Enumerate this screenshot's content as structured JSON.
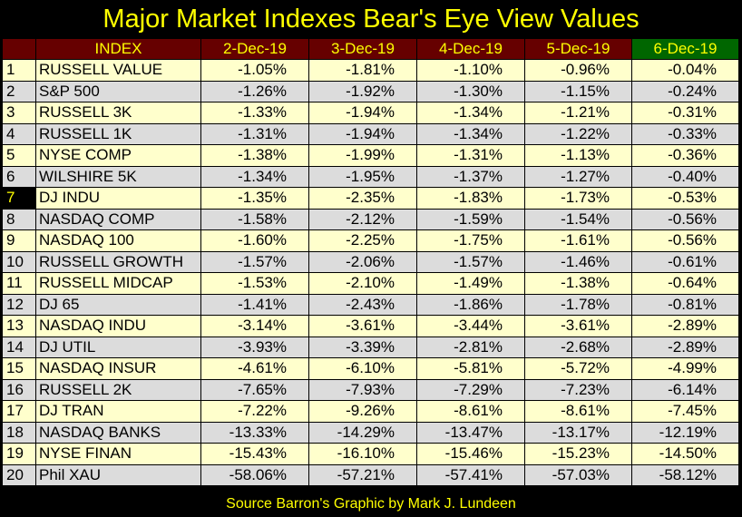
{
  "chart_data": {
    "type": "table",
    "title": "Major Market Indexes Bear's Eye View Values",
    "columns": [
      "INDEX",
      "2-Dec-19",
      "3-Dec-19",
      "4-Dec-19",
      "5-Dec-19",
      "6-Dec-19"
    ],
    "rows": [
      {
        "rank": "1",
        "index": "RUSSELL VALUE",
        "values": [
          "-1.05%",
          "-1.81%",
          "-1.10%",
          "-0.96%",
          "-0.04%"
        ]
      },
      {
        "rank": "2",
        "index": "S&P 500",
        "values": [
          "-1.26%",
          "-1.92%",
          "-1.30%",
          "-1.15%",
          "-0.24%"
        ]
      },
      {
        "rank": "3",
        "index": "RUSSELL 3K",
        "values": [
          "-1.33%",
          "-1.94%",
          "-1.34%",
          "-1.21%",
          "-0.31%"
        ]
      },
      {
        "rank": "4",
        "index": "RUSSELL 1K",
        "values": [
          "-1.31%",
          "-1.94%",
          "-1.34%",
          "-1.22%",
          "-0.33%"
        ]
      },
      {
        "rank": "5",
        "index": "NYSE COMP",
        "values": [
          "-1.38%",
          "-1.99%",
          "-1.31%",
          "-1.13%",
          "-0.36%"
        ]
      },
      {
        "rank": "6",
        "index": "WILSHIRE 5K",
        "values": [
          "-1.34%",
          "-1.95%",
          "-1.37%",
          "-1.27%",
          "-0.40%"
        ]
      },
      {
        "rank": "7",
        "index": "DJ  INDU",
        "values": [
          "-1.35%",
          "-2.35%",
          "-1.83%",
          "-1.73%",
          "-0.53%"
        ]
      },
      {
        "rank": "8",
        "index": "NASDAQ COMP",
        "values": [
          "-1.58%",
          "-2.12%",
          "-1.59%",
          "-1.54%",
          "-0.56%"
        ]
      },
      {
        "rank": "9",
        "index": "NASDAQ 100",
        "values": [
          "-1.60%",
          "-2.25%",
          "-1.75%",
          "-1.61%",
          "-0.56%"
        ]
      },
      {
        "rank": "10",
        "index": "RUSSELL GROWTH",
        "values": [
          "-1.57%",
          "-2.06%",
          "-1.57%",
          "-1.46%",
          "-0.61%"
        ]
      },
      {
        "rank": "11",
        "index": "RUSSELL MIDCAP",
        "values": [
          "-1.53%",
          "-2.10%",
          "-1.49%",
          "-1.38%",
          "-0.64%"
        ]
      },
      {
        "rank": "12",
        "index": "DJ  65",
        "values": [
          "-1.41%",
          "-2.43%",
          "-1.86%",
          "-1.78%",
          "-0.81%"
        ]
      },
      {
        "rank": "13",
        "index": "NASDAQ INDU",
        "values": [
          "-3.14%",
          "-3.61%",
          "-3.44%",
          "-3.61%",
          "-2.89%"
        ]
      },
      {
        "rank": "14",
        "index": "DJ  UTIL",
        "values": [
          "-3.93%",
          "-3.39%",
          "-2.81%",
          "-2.68%",
          "-2.89%"
        ]
      },
      {
        "rank": "15",
        "index": "NASDAQ INSUR",
        "values": [
          "-4.61%",
          "-6.10%",
          "-5.81%",
          "-5.72%",
          "-4.99%"
        ]
      },
      {
        "rank": "16",
        "index": "RUSSELL 2K",
        "values": [
          "-7.65%",
          "-7.93%",
          "-7.29%",
          "-7.23%",
          "-6.14%"
        ]
      },
      {
        "rank": "17",
        "index": "DJ  TRAN",
        "values": [
          "-7.22%",
          "-9.26%",
          "-8.61%",
          "-8.61%",
          "-7.45%"
        ]
      },
      {
        "rank": "18",
        "index": "NASDAQ BANKS",
        "values": [
          "-13.33%",
          "-14.29%",
          "-13.47%",
          "-13.17%",
          "-12.19%"
        ]
      },
      {
        "rank": "19",
        "index": "NYSE FINAN",
        "values": [
          "-15.43%",
          "-16.10%",
          "-15.46%",
          "-15.23%",
          "-14.50%"
        ]
      },
      {
        "rank": "20",
        "index": "Phil XAU",
        "values": [
          "-58.06%",
          "-57.21%",
          "-57.41%",
          "-57.03%",
          "-58.12%"
        ]
      }
    ],
    "highlight_rank": "7",
    "footer": "Source Barron's   Graphic by Mark J. Lundeen",
    "colors": {
      "background": "#000000",
      "title_text": "#ffff00",
      "header_bg": "#660000",
      "header_last_bg": "#006600",
      "row_light": "#ffffcc",
      "row_gray": "#dcdcdc"
    }
  }
}
